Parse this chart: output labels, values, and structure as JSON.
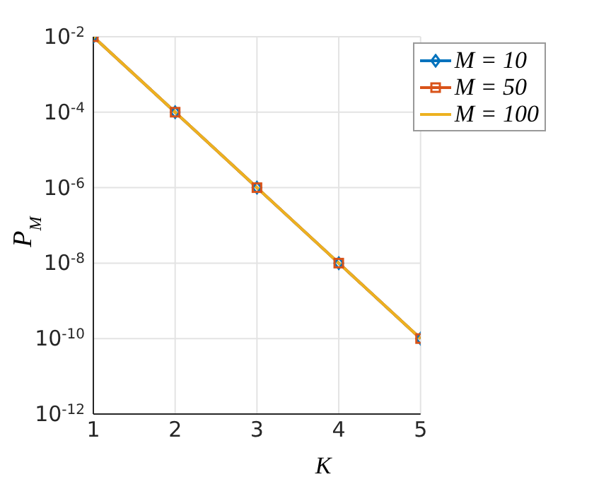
{
  "chart_data": {
    "type": "line",
    "xlabel": "K",
    "ylabel": "P$_{M}$",
    "x": [
      1,
      2,
      3,
      4,
      5
    ],
    "series": [
      {
        "name": "M = 10",
        "color": "#0072bd",
        "marker": "diamond",
        "values": [
          0.01,
          0.0001,
          1e-06,
          1e-08,
          1e-10
        ]
      },
      {
        "name": "M = 50",
        "color": "#d95319",
        "marker": "square",
        "values": [
          0.01,
          0.0001,
          1e-06,
          1e-08,
          1e-10
        ]
      },
      {
        "name": "M = 100",
        "color": "#edb120",
        "marker": "none",
        "values": [
          0.01,
          0.0001,
          1e-06,
          1e-08,
          1e-10
        ]
      }
    ],
    "log": "y",
    "xlim": [
      1,
      5
    ],
    "xticks": [
      1,
      2,
      3,
      4,
      5
    ],
    "ylim": [
      1e-12,
      0.01
    ],
    "yticks": [
      {
        "value": 1e-12,
        "label": "10$^{-12}$"
      },
      {
        "value": 1e-10,
        "label": "10$^{-10}$"
      },
      {
        "value": 1e-08,
        "label": "10$^{-8}$"
      },
      {
        "value": 1e-06,
        "label": "10$^{-6}$"
      },
      {
        "value": 0.0001,
        "label": "10$^{-4}$"
      },
      {
        "value": 0.01,
        "label": "10$^{-2}$"
      }
    ],
    "grid": true,
    "legend": "top right"
  }
}
